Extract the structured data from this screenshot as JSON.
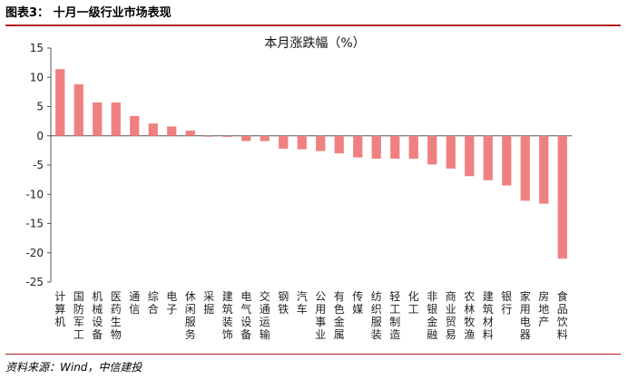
{
  "header": {
    "label": "图表3：",
    "title": "十月一级行业市场表现"
  },
  "footer": {
    "source": "资料来源：Wind，中信建投"
  },
  "chart_data": {
    "type": "bar",
    "title": "本月涨跌幅（%）",
    "xlabel": "",
    "ylabel": "",
    "ylim": [
      -25,
      15
    ],
    "yticks": [
      15,
      10,
      5,
      0,
      -5,
      -10,
      -15,
      -20,
      -25
    ],
    "grid": false,
    "legend": "none",
    "bar_color": "#f08080",
    "categories": [
      "计算机",
      "国防军工",
      "机械设备",
      "医药生物",
      "通信",
      "综合",
      "电子",
      "休闲服务",
      "采掘",
      "建筑装饰",
      "电气设备",
      "交通运输",
      "钢铁",
      "汽车",
      "公用事业",
      "有色金属",
      "传媒",
      "纺织服装",
      "轻工制造",
      "化工",
      "非银金融",
      "商业贸易",
      "农林牧渔",
      "建筑材料",
      "银行",
      "家用电器",
      "房地产",
      "食品饮料"
    ],
    "values": [
      11.4,
      8.8,
      5.7,
      5.7,
      3.4,
      2.1,
      1.6,
      0.9,
      -0.1,
      -0.2,
      -0.9,
      -0.9,
      -2.2,
      -2.3,
      -2.6,
      -3.0,
      -3.7,
      -3.9,
      -3.9,
      -3.9,
      -4.9,
      -5.6,
      -6.9,
      -7.6,
      -8.5,
      -11.1,
      -11.6,
      -21.0
    ]
  }
}
